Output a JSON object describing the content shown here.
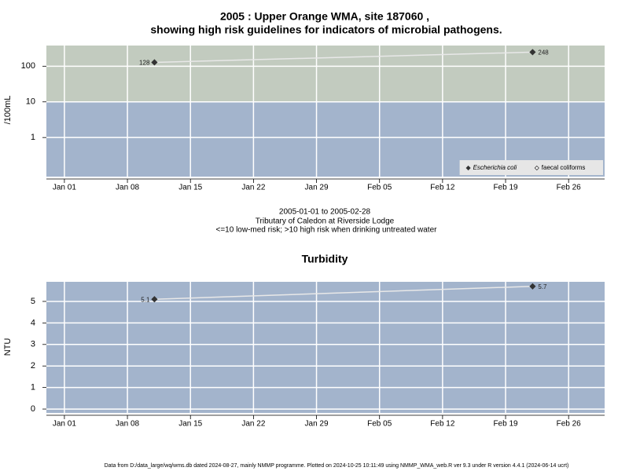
{
  "chart_data": [
    {
      "type": "line",
      "log_y": true,
      "title": "2005 : Upper Orange WMA, site 187060 ,",
      "subtitle": "showing high risk guidelines for indicators of microbial pathogens.",
      "ylabel": "/100mL",
      "xticks": [
        "Jan 01",
        "Jan 08",
        "Jan 15",
        "Jan 22",
        "Jan 29",
        "Feb 05",
        "Feb 12",
        "Feb 19",
        "Feb 26"
      ],
      "xlim": [
        "Dec 30",
        "Mar 02"
      ],
      "ylim": [
        0.08,
        380
      ],
      "yticks": [
        1,
        10,
        100
      ],
      "background": "#a3b4cc",
      "high_risk_above": 10,
      "high_risk_color": "#c2cbbf",
      "grid": true,
      "legend": "bottom-right",
      "series": [
        {
          "name": "Escherichia coli",
          "color": "#333333",
          "line_color": "#e8e8e8",
          "marker": "filled",
          "x": [
            "Jan 11",
            "Feb 22"
          ],
          "values": [
            128,
            248
          ]
        },
        {
          "name": "faecal coliforms",
          "color": "#333333",
          "marker": "open",
          "x": [],
          "values": []
        }
      ]
    },
    {
      "type": "line",
      "log_y": false,
      "title": "Turbidity",
      "ylabel": "NTU",
      "xticks": [
        "Jan 01",
        "Jan 08",
        "Jan 15",
        "Jan 22",
        "Jan 29",
        "Feb 05",
        "Feb 12",
        "Feb 19",
        "Feb 26"
      ],
      "xlim": [
        "Dec 30",
        "Mar 02"
      ],
      "ylim": [
        -0.18,
        5.91
      ],
      "yticks": [
        0,
        1,
        2,
        3,
        4,
        5
      ],
      "background": "#a3b4cc",
      "grid": true,
      "series": [
        {
          "color": "#333333",
          "line_color": "#e8e8e8",
          "marker": "filled",
          "x": [
            "Jan 11",
            "Feb 22"
          ],
          "values": [
            5.1,
            5.7
          ]
        }
      ]
    }
  ],
  "caption": [
    "2005-01-01 to 2005-02-28",
    "Tributary of Caledon at Riverside Lodge",
    "<=10 low-med risk; >10 high risk when drinking untreated water"
  ],
  "footer": "Data from D:/data_large/wq/wms.db dated 2024-08-27, mainly NMMP programme. Plotted on 2024-10-25 10:11:49 using NMMP_WMA_web.R ver 9.3 under R version 4.4.1 (2024-06-14 ucrt)"
}
